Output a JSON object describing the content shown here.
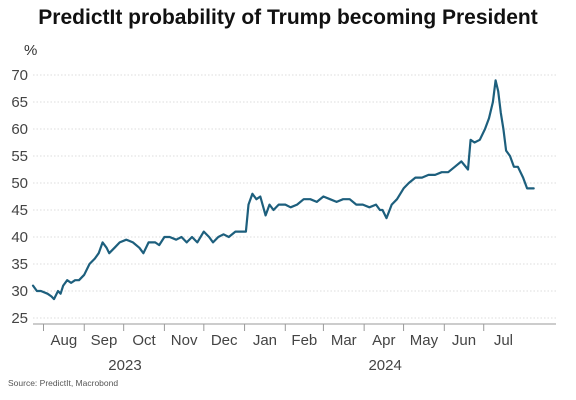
{
  "chart_data": {
    "type": "line",
    "title": "PredictIt probability of Trump becoming President",
    "ylabel": "%",
    "xlabel": "",
    "source": "Source: PredictIt, Macrobond",
    "ylim": [
      25,
      70
    ],
    "yticks": [
      25,
      30,
      35,
      40,
      45,
      50,
      55,
      60,
      65,
      70
    ],
    "x_range": [
      "2023-07-24",
      "2024-08-25"
    ],
    "month_ticks": [
      {
        "label": "Aug",
        "date": "2023-08-01"
      },
      {
        "label": "Sep",
        "date": "2023-09-01"
      },
      {
        "label": "Oct",
        "date": "2023-10-01"
      },
      {
        "label": "Nov",
        "date": "2023-11-01"
      },
      {
        "label": "Dec",
        "date": "2023-12-01"
      },
      {
        "label": "Jan",
        "date": "2024-01-01"
      },
      {
        "label": "Feb",
        "date": "2024-02-01"
      },
      {
        "label": "Mar",
        "date": "2024-03-01"
      },
      {
        "label": "Apr",
        "date": "2024-04-01"
      },
      {
        "label": "May",
        "date": "2024-05-01"
      },
      {
        "label": "Jun",
        "date": "2024-06-01"
      },
      {
        "label": "Jul",
        "date": "2024-07-01"
      }
    ],
    "year_labels": [
      {
        "label": "2023",
        "date": "2023-10-02"
      },
      {
        "label": "2024",
        "date": "2024-04-17"
      }
    ],
    "grid": true,
    "line_color": "#1d5f7d",
    "series": [
      {
        "x": [
          "2023-07-24",
          "2023-07-27",
          "2023-07-30",
          "2023-08-04",
          "2023-08-07",
          "2023-08-09",
          "2023-08-12",
          "2023-08-14",
          "2023-08-16",
          "2023-08-19",
          "2023-08-22",
          "2023-08-25",
          "2023-08-28",
          "2023-09-01",
          "2023-09-05",
          "2023-09-09",
          "2023-09-12",
          "2023-09-15",
          "2023-09-18",
          "2023-09-20",
          "2023-09-24",
          "2023-09-28",
          "2023-10-03",
          "2023-10-08",
          "2023-10-13",
          "2023-10-16",
          "2023-10-20",
          "2023-10-25",
          "2023-10-28",
          "2023-11-01",
          "2023-11-05",
          "2023-11-10",
          "2023-11-14",
          "2023-11-18",
          "2023-11-22",
          "2023-11-26",
          "2023-12-01",
          "2023-12-05",
          "2023-12-08",
          "2023-12-12",
          "2023-12-16",
          "2023-12-20",
          "2023-12-25",
          "2023-12-30",
          "2024-01-02",
          "2024-01-04",
          "2024-01-07",
          "2024-01-10",
          "2024-01-13",
          "2024-01-17",
          "2024-01-20",
          "2024-01-23",
          "2024-01-27",
          "2024-02-01",
          "2024-02-05",
          "2024-02-10",
          "2024-02-15",
          "2024-02-20",
          "2024-02-25",
          "2024-03-01",
          "2024-03-06",
          "2024-03-11",
          "2024-03-16",
          "2024-03-21",
          "2024-03-26",
          "2024-03-31",
          "2024-04-05",
          "2024-04-10",
          "2024-04-13",
          "2024-04-15",
          "2024-04-18",
          "2024-04-22",
          "2024-04-26",
          "2024-05-01",
          "2024-05-05",
          "2024-05-10",
          "2024-05-15",
          "2024-05-20",
          "2024-05-25",
          "2024-05-30",
          "2024-06-04",
          "2024-06-09",
          "2024-06-14",
          "2024-06-19",
          "2024-06-21",
          "2024-06-24",
          "2024-06-28",
          "2024-07-02",
          "2024-07-05",
          "2024-07-08",
          "2024-07-10",
          "2024-07-12",
          "2024-07-14",
          "2024-07-16",
          "2024-07-18",
          "2024-07-21",
          "2024-07-24",
          "2024-07-27",
          "2024-07-31",
          "2024-08-03",
          "2024-08-06",
          "2024-08-08"
        ],
        "y": [
          31,
          30,
          30,
          29.5,
          29,
          28.5,
          30,
          29.5,
          31,
          32,
          31.5,
          32,
          32,
          33,
          35,
          36,
          37,
          39,
          38,
          37,
          38,
          39,
          39.5,
          39,
          38,
          37,
          39,
          39,
          38.5,
          40,
          40,
          39.5,
          40,
          39,
          40,
          39,
          41,
          40,
          39,
          40,
          40.5,
          40,
          41,
          41,
          41,
          46,
          48,
          47,
          47.5,
          44,
          46,
          45,
          46,
          46,
          45.5,
          46,
          47,
          47,
          46.5,
          47.5,
          47,
          46.5,
          47,
          47,
          46,
          46,
          45.5,
          46,
          45,
          45,
          43.5,
          46,
          47,
          49,
          50,
          51,
          51,
          51.5,
          51.5,
          52,
          52,
          53,
          54,
          52.5,
          58,
          57.5,
          58,
          60,
          62,
          65,
          69,
          67,
          63,
          60,
          56,
          55,
          53,
          53,
          51,
          49,
          49,
          49
        ]
      }
    ]
  }
}
